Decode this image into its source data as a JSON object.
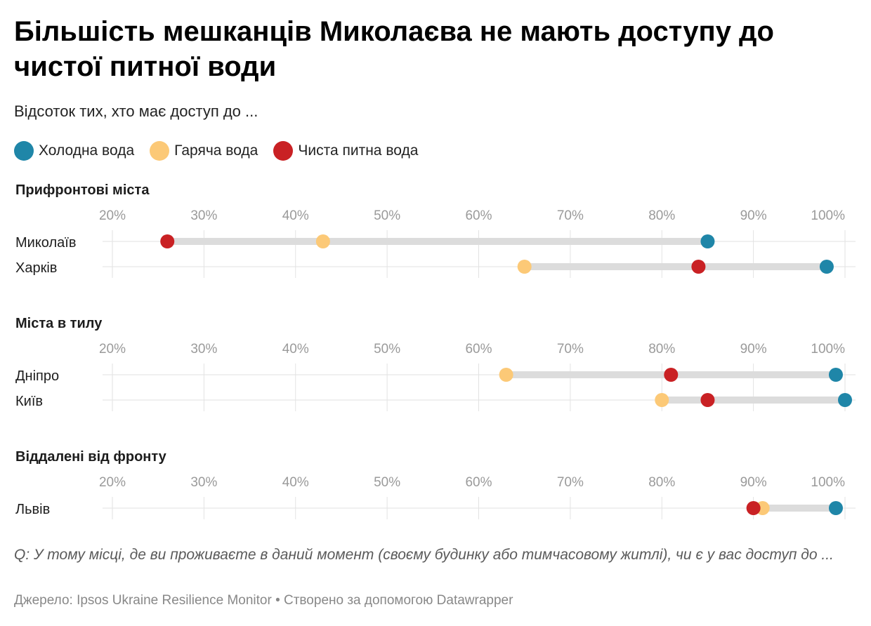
{
  "title": "Більшість мешканців Миколаєва не мають доступу до чистої питної води",
  "subtitle": "Відсоток тих, хто має доступ до ...",
  "legend": [
    {
      "label": "Холодна вода",
      "color": "#1f86a8"
    },
    {
      "label": "Гаряча вода",
      "color": "#fcc977"
    },
    {
      "label": "Чиста питна вода",
      "color": "#c92124"
    }
  ],
  "chart_data": [
    {
      "type": "dot-range",
      "title": "Прифронтові міста",
      "xlim": [
        20,
        100
      ],
      "ticks": [
        20,
        30,
        40,
        50,
        60,
        70,
        80,
        90,
        100
      ],
      "tick_labels": [
        "20%",
        "30%",
        "40%",
        "50%",
        "60%",
        "70%",
        "80%",
        "90%",
        "100%"
      ],
      "categories": [
        "Миколаїв",
        "Харків"
      ],
      "series": [
        {
          "name": "Холодна вода",
          "values": [
            85,
            98
          ]
        },
        {
          "name": "Гаряча вода",
          "values": [
            43,
            65
          ]
        },
        {
          "name": "Чиста питна вода",
          "values": [
            26,
            84
          ]
        }
      ]
    },
    {
      "type": "dot-range",
      "title": "Міста в тилу",
      "xlim": [
        20,
        100
      ],
      "ticks": [
        20,
        30,
        40,
        50,
        60,
        70,
        80,
        90,
        100
      ],
      "tick_labels": [
        "20%",
        "30%",
        "40%",
        "50%",
        "60%",
        "70%",
        "80%",
        "90%",
        "100%"
      ],
      "categories": [
        "Дніпро",
        "Київ"
      ],
      "series": [
        {
          "name": "Холодна вода",
          "values": [
            99,
            100
          ]
        },
        {
          "name": "Гаряча вода",
          "values": [
            63,
            80
          ]
        },
        {
          "name": "Чиста питна вода",
          "values": [
            81,
            85
          ]
        }
      ]
    },
    {
      "type": "dot-range",
      "title": "Віддалені від фронту",
      "xlim": [
        20,
        100
      ],
      "ticks": [
        20,
        30,
        40,
        50,
        60,
        70,
        80,
        90,
        100
      ],
      "tick_labels": [
        "20%",
        "30%",
        "40%",
        "50%",
        "60%",
        "70%",
        "80%",
        "90%",
        "100%"
      ],
      "categories": [
        "Львів"
      ],
      "series": [
        {
          "name": "Холодна вода",
          "values": [
            99
          ]
        },
        {
          "name": "Гаряча вода",
          "values": [
            91
          ]
        },
        {
          "name": "Чиста питна вода",
          "values": [
            90
          ]
        }
      ]
    }
  ],
  "note": "Q: У тому місці, де ви проживаєте в даний момент (своєму будинку або тимчасовому житлі), чи є у вас доступ до ...",
  "source": "Джерело: Ipsos Ukraine Resilience Monitor • Створено за допомогою Datawrapper"
}
